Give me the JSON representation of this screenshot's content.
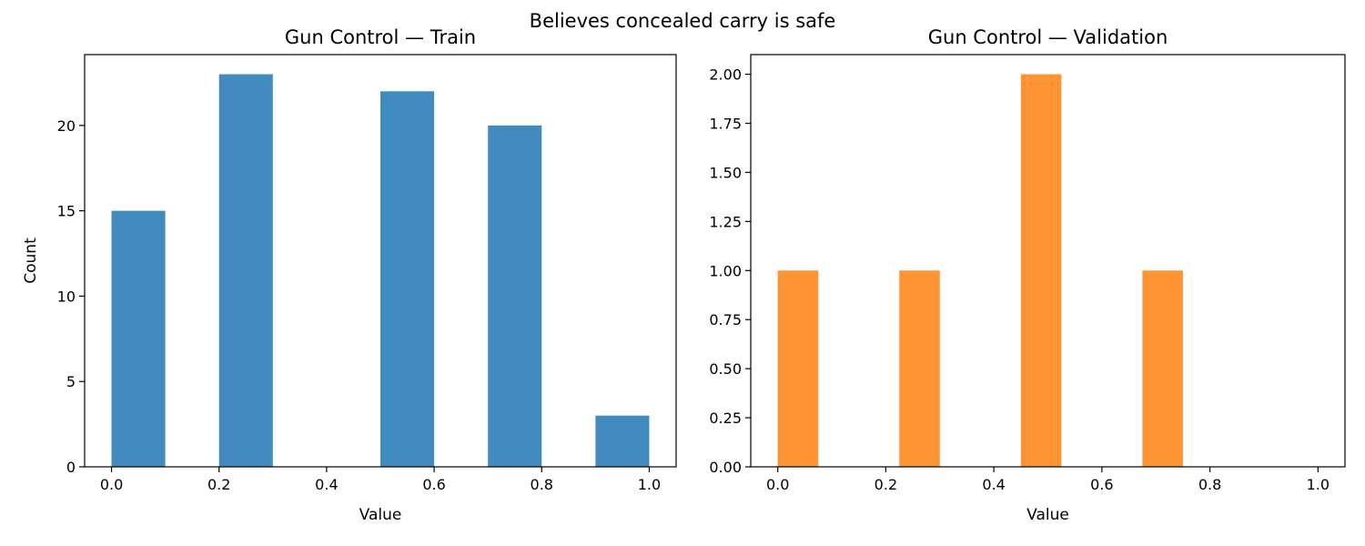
{
  "figure": {
    "suptitle": "Believes concealed carry is safe"
  },
  "chart_data": [
    {
      "type": "bar",
      "title": "Gun Control — Train",
      "xlabel": "Value",
      "ylabel": "Count",
      "color": "#418bbe",
      "xlim": [
        -0.05,
        1.05
      ],
      "ylim": [
        0,
        24.15
      ],
      "xticks": [
        0.0,
        0.2,
        0.4,
        0.6,
        0.8,
        1.0
      ],
      "xtick_labels": [
        "0.0",
        "0.2",
        "0.4",
        "0.6",
        "0.8",
        "1.0"
      ],
      "yticks": [
        0,
        5,
        10,
        15,
        20
      ],
      "ytick_labels": [
        "0",
        "5",
        "10",
        "15",
        "20"
      ],
      "bins": [
        {
          "x0": 0.0,
          "x1": 0.1,
          "count": 15
        },
        {
          "x0": 0.2,
          "x1": 0.3,
          "count": 23
        },
        {
          "x0": 0.5,
          "x1": 0.6,
          "count": 22
        },
        {
          "x0": 0.7,
          "x1": 0.8,
          "count": 20
        },
        {
          "x0": 0.9,
          "x1": 1.0,
          "count": 3
        }
      ]
    },
    {
      "type": "bar",
      "title": "Gun Control — Validation",
      "xlabel": "Value",
      "ylabel": "",
      "color": "#ff9435",
      "xlim": [
        -0.05,
        1.05
      ],
      "ylim": [
        0,
        2.1
      ],
      "xticks": [
        0.0,
        0.2,
        0.4,
        0.6,
        0.8,
        1.0
      ],
      "xtick_labels": [
        "0.0",
        "0.2",
        "0.4",
        "0.6",
        "0.8",
        "1.0"
      ],
      "yticks": [
        0,
        0.25,
        0.5,
        0.75,
        1.0,
        1.25,
        1.5,
        1.75,
        2.0
      ],
      "ytick_labels": [
        "0.00",
        "0.25",
        "0.50",
        "0.75",
        "1.00",
        "1.25",
        "1.50",
        "1.75",
        "2.00"
      ],
      "bins": [
        {
          "x0": 0.0,
          "x1": 0.075,
          "count": 1
        },
        {
          "x0": 0.225,
          "x1": 0.3,
          "count": 1
        },
        {
          "x0": 0.45,
          "x1": 0.525,
          "count": 2
        },
        {
          "x0": 0.675,
          "x1": 0.75,
          "count": 1
        }
      ]
    }
  ]
}
